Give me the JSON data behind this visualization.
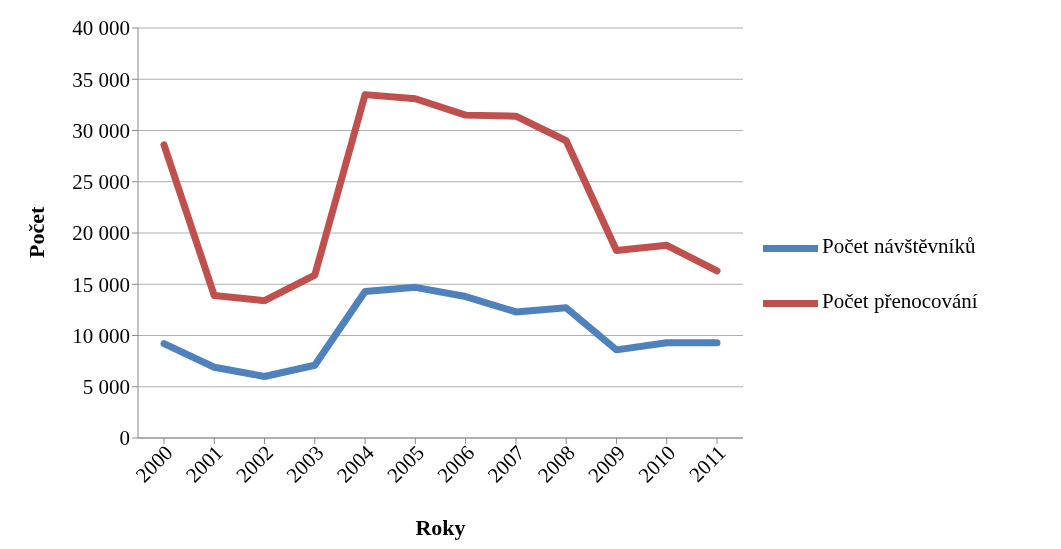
{
  "chart_data": {
    "type": "line",
    "xlabel": "Roky",
    "ylabel": "Počet",
    "categories": [
      "2000",
      "2001",
      "2002",
      "2003",
      "2004",
      "2005",
      "2006",
      "2007",
      "2008",
      "2009",
      "2010",
      "2011"
    ],
    "series": [
      {
        "name": "Počet návštěvníků",
        "color": "#4f81bd",
        "values": [
          9200,
          6900,
          6000,
          7100,
          14300,
          14700,
          13800,
          12300,
          12700,
          8600,
          9300,
          9300
        ]
      },
      {
        "name": "Počet přenocování",
        "color": "#c0504d",
        "values": [
          28600,
          13900,
          13400,
          15900,
          33500,
          33100,
          31500,
          31400,
          29000,
          18300,
          18800,
          16300
        ]
      }
    ],
    "ylim": [
      0,
      40000
    ],
    "yticks": [
      {
        "value": 0,
        "label": "0"
      },
      {
        "value": 5000,
        "label": "5 000"
      },
      {
        "value": 10000,
        "label": "10 000"
      },
      {
        "value": 15000,
        "label": "15 000"
      },
      {
        "value": 20000,
        "label": "20 000"
      },
      {
        "value": 25000,
        "label": "25 000"
      },
      {
        "value": 30000,
        "label": "30 000"
      },
      {
        "value": 35000,
        "label": "35 000"
      },
      {
        "value": 40000,
        "label": "40 000"
      }
    ],
    "grid": "y",
    "legend": "right",
    "marker": "none",
    "line_style": "solid"
  }
}
